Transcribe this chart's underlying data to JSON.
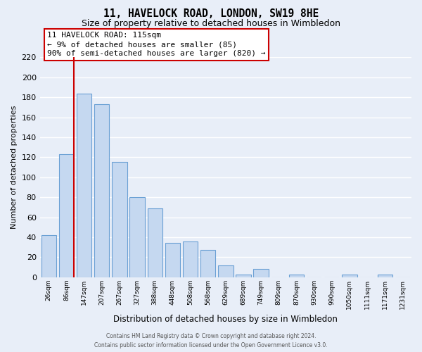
{
  "title": "11, HAVELOCK ROAD, LONDON, SW19 8HE",
  "subtitle": "Size of property relative to detached houses in Wimbledon",
  "xlabel": "Distribution of detached houses by size in Wimbledon",
  "ylabel": "Number of detached properties",
  "categories": [
    "26sqm",
    "86sqm",
    "147sqm",
    "207sqm",
    "267sqm",
    "327sqm",
    "388sqm",
    "448sqm",
    "508sqm",
    "568sqm",
    "629sqm",
    "689sqm",
    "749sqm",
    "809sqm",
    "870sqm",
    "930sqm",
    "990sqm",
    "1050sqm",
    "1111sqm",
    "1171sqm",
    "1231sqm"
  ],
  "values": [
    42,
    123,
    184,
    173,
    115,
    80,
    69,
    34,
    36,
    27,
    12,
    3,
    8,
    0,
    3,
    0,
    0,
    3,
    0,
    3,
    0
  ],
  "bar_color": "#c5d8f0",
  "bar_edge_color": "#6aa0d4",
  "marker_line_color": "#cc0000",
  "annotation_line1": "11 HAVELOCK ROAD: 115sqm",
  "annotation_line2": "← 9% of detached houses are smaller (85)",
  "annotation_line3": "90% of semi-detached houses are larger (820) →",
  "annotation_box_color": "#ffffff",
  "annotation_box_edge": "#cc0000",
  "ylim": [
    0,
    220
  ],
  "yticks": [
    0,
    20,
    40,
    60,
    80,
    100,
    120,
    140,
    160,
    180,
    200,
    220
  ],
  "footer_line1": "Contains HM Land Registry data © Crown copyright and database right 2024.",
  "footer_line2": "Contains public sector information licensed under the Open Government Licence v3.0.",
  "bg_color": "#e8eef8",
  "grid_color": "#ffffff"
}
